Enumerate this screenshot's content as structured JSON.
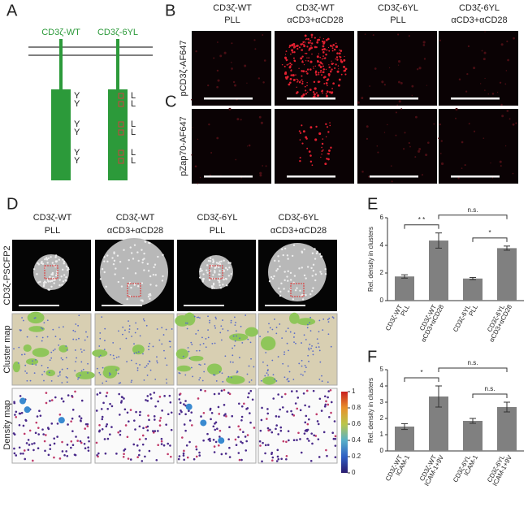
{
  "panel_a": {
    "label": "A",
    "constructs": [
      "CD3ζ-WT",
      "CD3ζ-6YL"
    ],
    "wt_residues": [
      "Y",
      "Y",
      "Y",
      "Y",
      "Y",
      "Y"
    ],
    "yl_residues": [
      "L",
      "L",
      "L",
      "L",
      "L",
      "L"
    ]
  },
  "panel_b": {
    "label": "B",
    "columns": [
      [
        "CD3ζ-WT",
        "PLL"
      ],
      [
        "CD3ζ-WT",
        "αCD3+αCD28"
      ],
      [
        "CD3ζ-6YL",
        "PLL"
      ],
      [
        "CD3ζ-6YL",
        "αCD3+αCD28"
      ]
    ],
    "row_label": "pCD3ζ-AF647"
  },
  "panel_c": {
    "label": "C",
    "row_label": "pZap70-AF647"
  },
  "panel_d": {
    "label": "D",
    "columns": [
      [
        "CD3ζ-WT",
        "PLL"
      ],
      [
        "CD3ζ-WT",
        "αCD3+αCD28"
      ],
      [
        "CD3ζ-6YL",
        "PLL"
      ],
      [
        "CD3ζ-6YL",
        "αCD3+αCD28"
      ]
    ],
    "row_labels": [
      "CD3ζ-PSCFP2",
      "Cluster map",
      "Density map"
    ],
    "colorbar_ticks": [
      0,
      0.2,
      0.4,
      0.6,
      0.8,
      1
    ]
  },
  "chart_data": [
    {
      "type": "bar",
      "panel": "E",
      "ylabel": "Rel. density in clusters",
      "categories": [
        [
          "CD3ζ-WT",
          "PLL"
        ],
        [
          "CD3ζ-WT",
          "αCD3+αCD28"
        ],
        [
          "CD3ζ-6YL",
          "PLL"
        ],
        [
          "CD3ζ-6YL",
          "αCD3+αCD28"
        ]
      ],
      "values": [
        1.75,
        4.35,
        1.6,
        3.8
      ],
      "errors": [
        0.12,
        0.55,
        0.08,
        0.15
      ],
      "color": "#808080",
      "ylim": [
        0,
        6
      ],
      "yticks": [
        0,
        2,
        4,
        6
      ],
      "significance": [
        {
          "from": 0,
          "to": 1,
          "label": "* *"
        },
        {
          "from": 2,
          "to": 3,
          "label": "*"
        },
        {
          "from": 1,
          "to": 3,
          "label": "n.s."
        }
      ]
    },
    {
      "type": "bar",
      "panel": "F",
      "ylabel": "Rel. density in clusters",
      "categories": [
        [
          "CD3ζ-WT",
          "ICAM-1"
        ],
        [
          "CD3ζ-WT",
          "ICAM-1+9V"
        ],
        [
          "CD3ζ-6YL",
          "ICAM-1"
        ],
        [
          "CD3ζ-6YL",
          "ICAM-1+9V"
        ]
      ],
      "values": [
        1.5,
        3.35,
        1.85,
        2.7
      ],
      "errors": [
        0.18,
        0.65,
        0.15,
        0.3
      ],
      "color": "#808080",
      "ylim": [
        0,
        5
      ],
      "yticks": [
        0,
        1,
        2,
        3,
        4,
        5
      ],
      "significance": [
        {
          "from": 0,
          "to": 1,
          "label": "*"
        },
        {
          "from": 2,
          "to": 3,
          "label": "n.s."
        },
        {
          "from": 1,
          "to": 3,
          "label": "n.s."
        }
      ]
    }
  ]
}
